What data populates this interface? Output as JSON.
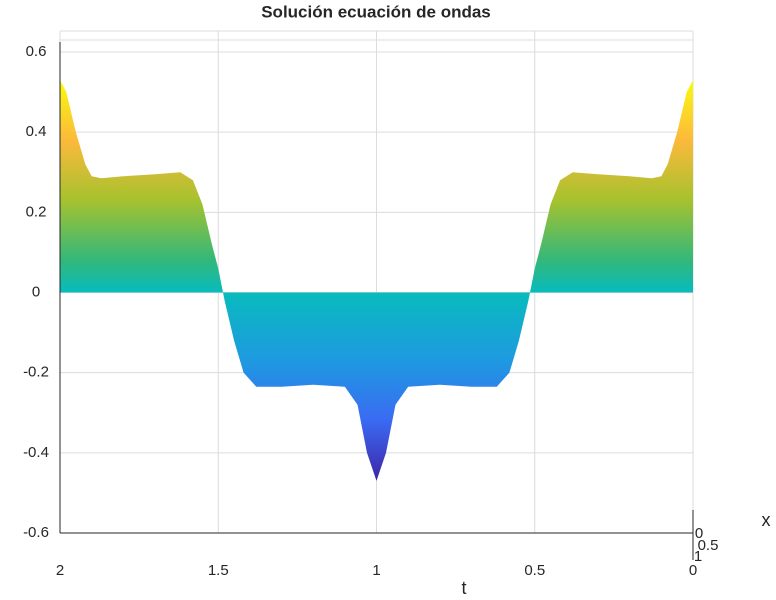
{
  "chart_data": {
    "type": "area",
    "title": "Solución ecuación de ondas",
    "x_label": "t",
    "z_label": "x",
    "x": [
      2,
      1.98,
      1.95,
      1.92,
      1.9,
      1.87,
      1.8,
      1.7,
      1.62,
      1.58,
      1.55,
      1.52,
      1.5,
      1.48,
      1.45,
      1.42,
      1.38,
      1.3,
      1.2,
      1.1,
      1.06,
      1.03,
      1.0,
      0.97,
      0.94,
      0.9,
      0.8,
      0.7,
      0.62,
      0.58,
      0.55,
      0.52,
      0.5,
      0.48,
      0.45,
      0.42,
      0.38,
      0.3,
      0.2,
      0.13,
      0.1,
      0.08,
      0.05,
      0.02,
      0
    ],
    "values": [
      0.53,
      0.5,
      0.4,
      0.32,
      0.29,
      0.285,
      0.29,
      0.295,
      0.3,
      0.28,
      0.22,
      0.12,
      0.06,
      -0.02,
      -0.12,
      -0.2,
      -0.235,
      -0.235,
      -0.23,
      -0.235,
      -0.28,
      -0.4,
      -0.47,
      -0.4,
      -0.28,
      -0.235,
      -0.23,
      -0.235,
      -0.235,
      -0.2,
      -0.12,
      -0.02,
      0.06,
      0.12,
      0.22,
      0.28,
      0.3,
      0.295,
      0.29,
      0.285,
      0.29,
      0.32,
      0.4,
      0.5,
      0.53
    ],
    "xlim": [
      2,
      0
    ],
    "xticks": [
      2,
      1.5,
      1,
      0.5,
      0
    ],
    "ylim": [
      -0.6,
      0.6
    ],
    "yticks": [
      -0.6,
      -0.4,
      -0.2,
      0,
      0.2,
      0.4,
      0.6
    ],
    "zticks": [
      0,
      0.5,
      1
    ],
    "grid": true
  }
}
